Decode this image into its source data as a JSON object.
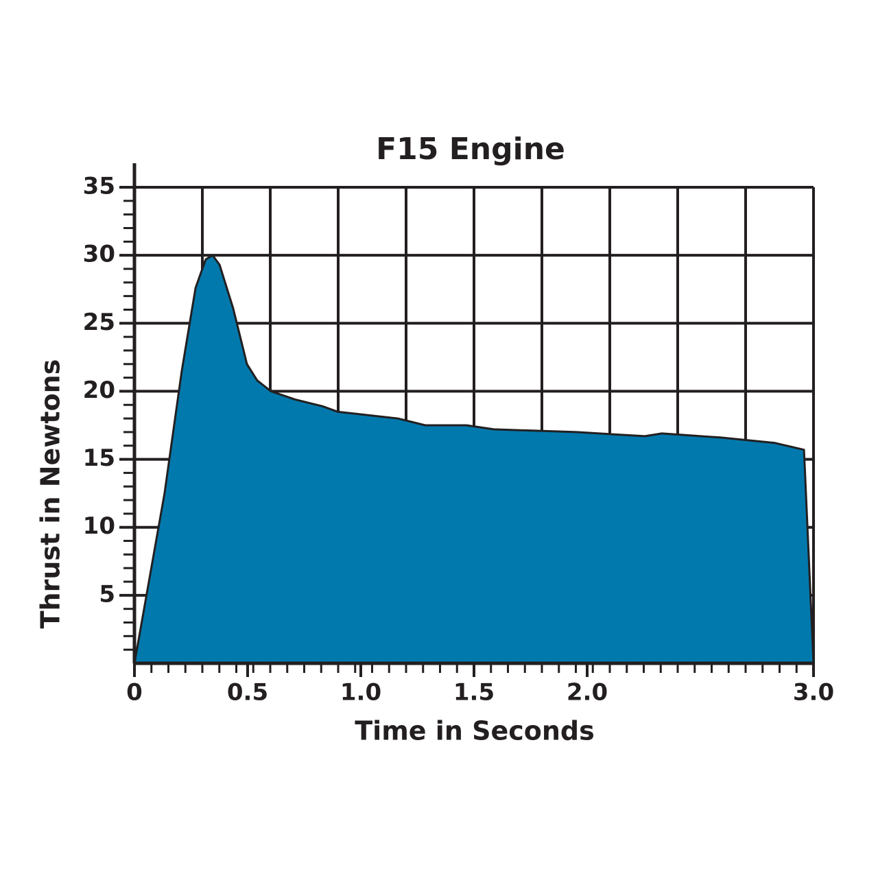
{
  "chart_data": {
    "type": "area",
    "title": "F15 Engine",
    "x_label": "Time in Seconds",
    "y_label": "Thrust in Newtons",
    "x": [
      0,
      0.133,
      0.209,
      0.27,
      0.315,
      0.345,
      0.376,
      0.436,
      0.497,
      0.542,
      0.603,
      0.709,
      0.83,
      0.897,
      1.164,
      1.285,
      1.467,
      1.588,
      1.952,
      2.255,
      2.33,
      2.588,
      2.83,
      2.958,
      3.0
    ],
    "values": [
      0,
      12.5,
      21.5,
      27.6,
      29.7,
      30.0,
      29.3,
      26.1,
      22.0,
      20.8,
      20.0,
      19.4,
      18.9,
      18.5,
      18.0,
      17.5,
      17.5,
      17.2,
      17.0,
      16.7,
      16.9,
      16.6,
      16.2,
      15.7,
      0
    ],
    "color": "#0279ad",
    "xlim": [
      0,
      3.0
    ],
    "ylim": [
      0,
      35
    ],
    "xticks": [
      0,
      0.5,
      {
        "value": 1,
        "label": "1.0"
      },
      1.5,
      {
        "value": 2,
        "label": "2.0"
      },
      {
        "value": 3,
        "label": "3.0"
      }
    ],
    "yticks": [
      5,
      10,
      15,
      20,
      25,
      30,
      35
    ],
    "grid": true
  }
}
